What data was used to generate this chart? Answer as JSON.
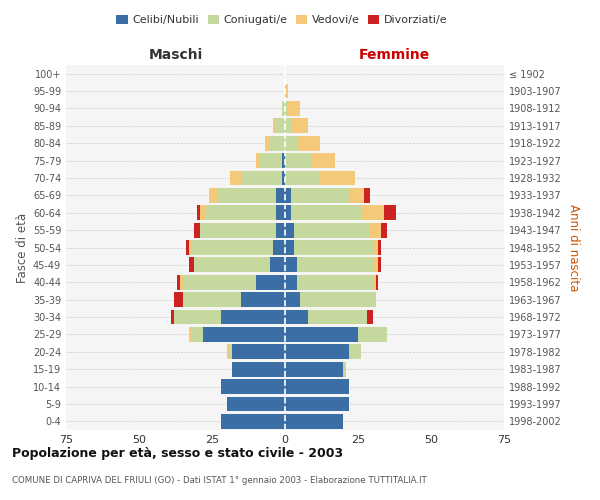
{
  "age_groups": [
    "0-4",
    "5-9",
    "10-14",
    "15-19",
    "20-24",
    "25-29",
    "30-34",
    "35-39",
    "40-44",
    "45-49",
    "50-54",
    "55-59",
    "60-64",
    "65-69",
    "70-74",
    "75-79",
    "80-84",
    "85-89",
    "90-94",
    "95-99",
    "100+"
  ],
  "birth_years": [
    "1998-2002",
    "1993-1997",
    "1988-1992",
    "1983-1987",
    "1978-1982",
    "1973-1977",
    "1968-1972",
    "1963-1967",
    "1958-1962",
    "1953-1957",
    "1948-1952",
    "1943-1947",
    "1938-1942",
    "1933-1937",
    "1928-1932",
    "1923-1927",
    "1918-1922",
    "1913-1917",
    "1908-1912",
    "1903-1907",
    "≤ 1902"
  ],
  "maschi": {
    "celibi": [
      22,
      20,
      22,
      18,
      18,
      28,
      22,
      15,
      10,
      5,
      4,
      3,
      3,
      3,
      1,
      1,
      0,
      0,
      0,
      0,
      0
    ],
    "coniugati": [
      0,
      0,
      0,
      0,
      1,
      4,
      16,
      20,
      25,
      26,
      28,
      26,
      24,
      20,
      14,
      8,
      5,
      3,
      1,
      0,
      0
    ],
    "vedovi": [
      0,
      0,
      0,
      0,
      1,
      1,
      0,
      0,
      1,
      0,
      1,
      0,
      2,
      3,
      4,
      1,
      2,
      1,
      0,
      0,
      0
    ],
    "divorziati": [
      0,
      0,
      0,
      0,
      0,
      0,
      1,
      3,
      1,
      2,
      1,
      2,
      1,
      0,
      0,
      0,
      0,
      0,
      0,
      0,
      0
    ]
  },
  "femmine": {
    "nubili": [
      20,
      22,
      22,
      20,
      22,
      25,
      8,
      5,
      4,
      4,
      3,
      3,
      2,
      2,
      0,
      0,
      0,
      0,
      0,
      0,
      0
    ],
    "coniugate": [
      0,
      0,
      0,
      1,
      4,
      10,
      20,
      26,
      26,
      26,
      27,
      26,
      24,
      20,
      12,
      9,
      4,
      2,
      1,
      0,
      0
    ],
    "vedove": [
      0,
      0,
      0,
      0,
      0,
      0,
      0,
      0,
      1,
      2,
      2,
      4,
      8,
      5,
      12,
      8,
      8,
      6,
      4,
      1,
      0
    ],
    "divorziate": [
      0,
      0,
      0,
      0,
      0,
      0,
      2,
      0,
      1,
      1,
      1,
      2,
      4,
      2,
      0,
      0,
      0,
      0,
      0,
      0,
      0
    ]
  },
  "colors": {
    "celibi": "#3a6ea5",
    "coniugati": "#c5d89d",
    "vedovi": "#f5c97a",
    "divorziati": "#cc2222"
  },
  "xlim": 75,
  "title": "Popolazione per età, sesso e stato civile - 2003",
  "subtitle": "COMUNE DI CAPRIVA DEL FRIULI (GO) - Dati ISTAT 1° gennaio 2003 - Elaborazione TUTTITALIA.IT",
  "ylabel_left": "Fasce di età",
  "ylabel_right": "Anni di nascita"
}
